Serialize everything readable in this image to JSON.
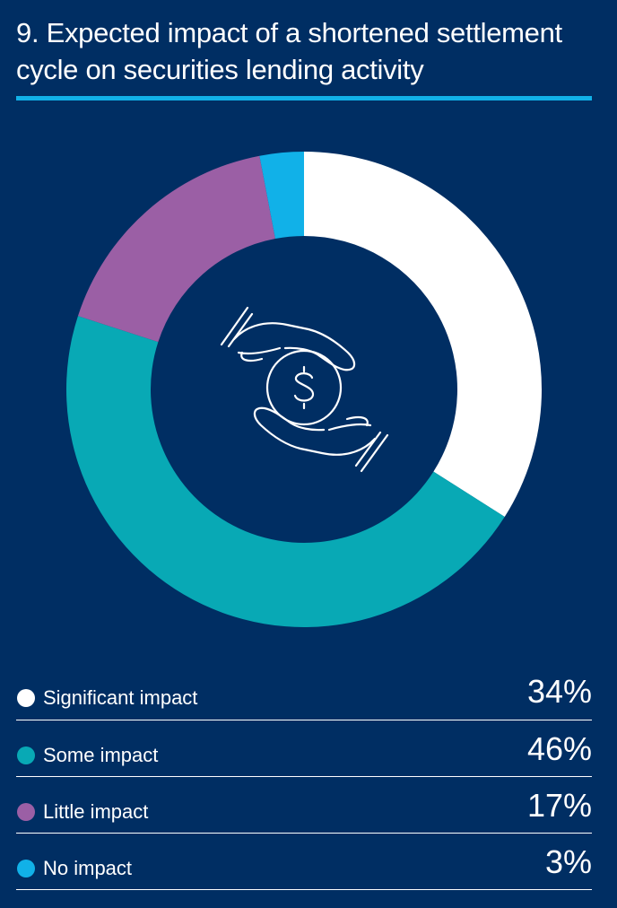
{
  "title": "9. Expected impact of a shortened settlement cycle on securities lending activity",
  "colors": {
    "background": "#002e63",
    "accent_rule": "#11b1e8",
    "text": "#ffffff"
  },
  "center_icon": "hands-holding-dollar-coin-icon",
  "chart_data": {
    "type": "pie",
    "donut": true,
    "categories": [
      "Significant impact",
      "Some impact",
      "Little impact",
      "No impact"
    ],
    "values": [
      34,
      46,
      17,
      3
    ],
    "value_labels": [
      "34%",
      "46%",
      "17%",
      "3%"
    ],
    "colors": [
      "#ffffff",
      "#08a9b5",
      "#9b5fa5",
      "#11b1e8"
    ],
    "start": "12 o'clock",
    "direction": "clockwise",
    "legend_position": "bottom"
  }
}
